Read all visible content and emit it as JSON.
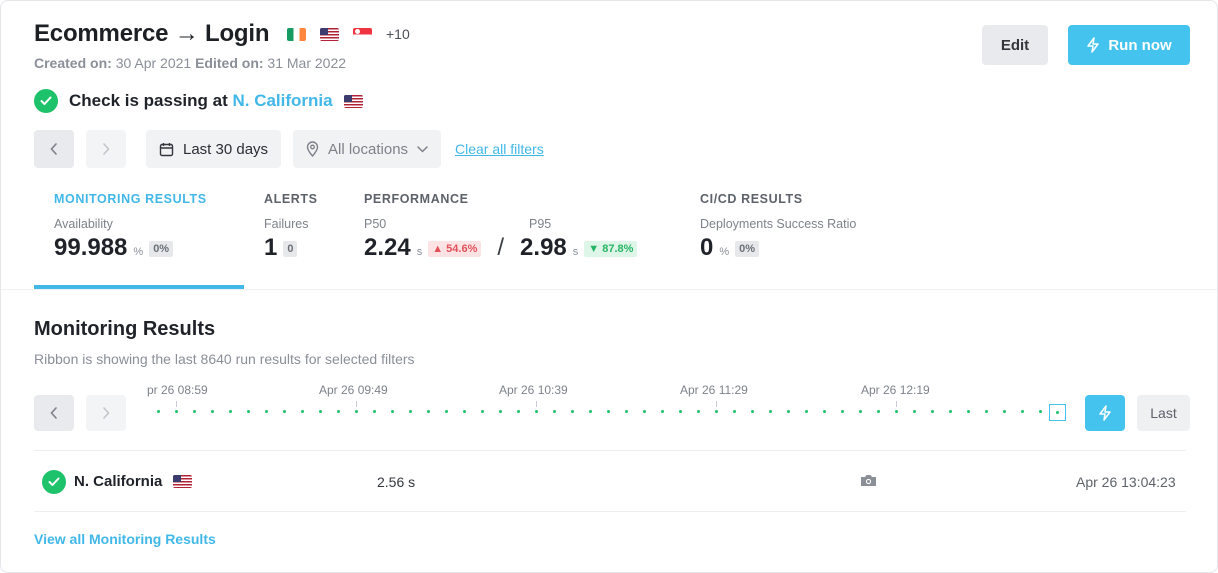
{
  "header": {
    "title": "Ecommerce → Login",
    "flags_more": "+10",
    "created_label": "Created on:",
    "created_value": "30 Apr 2021",
    "edited_label": "Edited on:",
    "edited_value": "31 Mar 2022",
    "edit_label": "Edit",
    "run_label": "Run now"
  },
  "status": {
    "prefix": "Check is passing at",
    "location": "N. California"
  },
  "filters": {
    "date_range": "Last 30 days",
    "locations": "All locations",
    "clear": "Clear all filters"
  },
  "metrics": {
    "monitoring": {
      "title": "MONITORING RESULTS",
      "sub": "Availability",
      "value": "99.988",
      "unit": "%",
      "chip": "0%"
    },
    "alerts": {
      "title": "ALERTS",
      "sub": "Failures",
      "value": "1",
      "chip": "0"
    },
    "performance": {
      "title": "PERFORMANCE",
      "p50_label": "P50",
      "p50_value": "2.24",
      "p50_unit": "s",
      "p50_change": "54.6%",
      "p95_label": "P95",
      "p95_value": "2.98",
      "p95_unit": "s",
      "p95_change": "87.8%"
    },
    "cicd": {
      "title": "CI/CD RESULTS",
      "sub": "Deployments Success Ratio",
      "value": "0",
      "unit": "%",
      "chip": "0%"
    }
  },
  "results": {
    "title": "Monitoring Results",
    "subtitle": "Ribbon is showing the last 8640 run results for selected filters",
    "ticks": [
      "pr 26 08:59",
      "Apr 26 09:49",
      "Apr 26 10:39",
      "Apr 26 11:29",
      "Apr 26 12:19"
    ],
    "last_label": "Last",
    "row": {
      "location": "N. California",
      "duration": "2.56 s",
      "time": "Apr 26 13:04:23"
    },
    "view_all": "View all Monitoring Results"
  },
  "colors": {
    "accent": "#45c3ef",
    "success": "#1ec26a"
  }
}
